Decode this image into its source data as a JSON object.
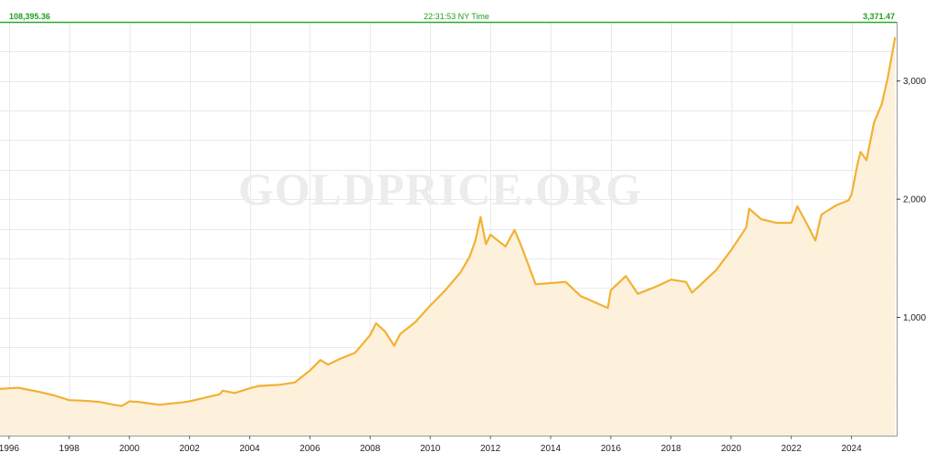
{
  "header": {
    "left_value": "108,395.36",
    "center_time": "22:31:53 NY Time",
    "right_value": "3,371.47"
  },
  "watermark": "GOLDPRICE.ORG",
  "colors": {
    "line": "#f2b134",
    "fill": "#fdf1dc",
    "topline": "#2ea82e",
    "grid": "#e9e9e9"
  },
  "chart_data": {
    "type": "area",
    "title": "",
    "xlabel": "",
    "ylabel": "",
    "xlim": [
      1995.7,
      2025.5
    ],
    "ylim": [
      0,
      3500
    ],
    "y_axis_position": "right",
    "grid": true,
    "x_ticks": [
      {
        "value": 1996,
        "label": "1996"
      },
      {
        "value": 1998,
        "label": "1998"
      },
      {
        "value": 2000,
        "label": "2000"
      },
      {
        "value": 2002,
        "label": "2002"
      },
      {
        "value": 2004,
        "label": "2004"
      },
      {
        "value": 2006,
        "label": "2006"
      },
      {
        "value": 2008,
        "label": "2008"
      },
      {
        "value": 2010,
        "label": "2010"
      },
      {
        "value": 2012,
        "label": "2012"
      },
      {
        "value": 2014,
        "label": "2014"
      },
      {
        "value": 2016,
        "label": "2016"
      },
      {
        "value": 2018,
        "label": "2018"
      },
      {
        "value": 2020,
        "label": "2020"
      },
      {
        "value": 2022,
        "label": "2022"
      },
      {
        "value": 2024,
        "label": "2024"
      }
    ],
    "y_ticks": [
      {
        "value": 1000,
        "label": "1,000"
      },
      {
        "value": 2000,
        "label": "2,000"
      },
      {
        "value": 3000,
        "label": "3,000"
      }
    ],
    "series": [
      {
        "x": [
          1995.7,
          1996.0,
          1996.3,
          1996.6,
          1997.0,
          1997.5,
          1998.0,
          1998.5,
          1999.0,
          1999.5,
          1999.75,
          2000.0,
          2000.3,
          2001.0,
          2001.3,
          2001.7,
          2002.0,
          2002.5,
          2003.0,
          2003.1,
          2003.5,
          2004.0,
          2004.3,
          2005.0,
          2005.5,
          2006.0,
          2006.35,
          2006.6,
          2007.0,
          2007.5,
          2008.0,
          2008.2,
          2008.5,
          2008.8,
          2009.0,
          2009.5,
          2010.0,
          2010.5,
          2011.0,
          2011.3,
          2011.5,
          2011.67,
          2011.85,
          2012.0,
          2012.5,
          2012.8,
          2013.0,
          2013.5,
          2014.0,
          2014.5,
          2015.0,
          2015.9,
          2016.0,
          2016.5,
          2016.9,
          2017.5,
          2018.0,
          2018.5,
          2018.7,
          2019.0,
          2019.5,
          2020.0,
          2020.5,
          2020.6,
          2021.0,
          2021.5,
          2022.0,
          2022.2,
          2022.5,
          2022.8,
          2023.0,
          2023.5,
          2023.9,
          2024.0,
          2024.2,
          2024.3,
          2024.5,
          2024.75,
          2025.0,
          2025.2,
          2025.45
        ],
        "values": [
          395,
          400,
          405,
          390,
          370,
          340,
          300,
          295,
          285,
          260,
          250,
          290,
          285,
          260,
          270,
          280,
          290,
          320,
          350,
          380,
          360,
          400,
          420,
          430,
          450,
          550,
          640,
          600,
          650,
          700,
          850,
          950,
          880,
          760,
          860,
          960,
          1100,
          1230,
          1380,
          1510,
          1650,
          1850,
          1620,
          1700,
          1600,
          1740,
          1620,
          1280,
          1290,
          1300,
          1180,
          1080,
          1230,
          1350,
          1200,
          1260,
          1320,
          1300,
          1210,
          1280,
          1400,
          1570,
          1760,
          1920,
          1830,
          1800,
          1800,
          1940,
          1800,
          1650,
          1870,
          1950,
          1990,
          2040,
          2300,
          2400,
          2330,
          2650,
          2800,
          3020,
          3371
        ]
      }
    ]
  }
}
